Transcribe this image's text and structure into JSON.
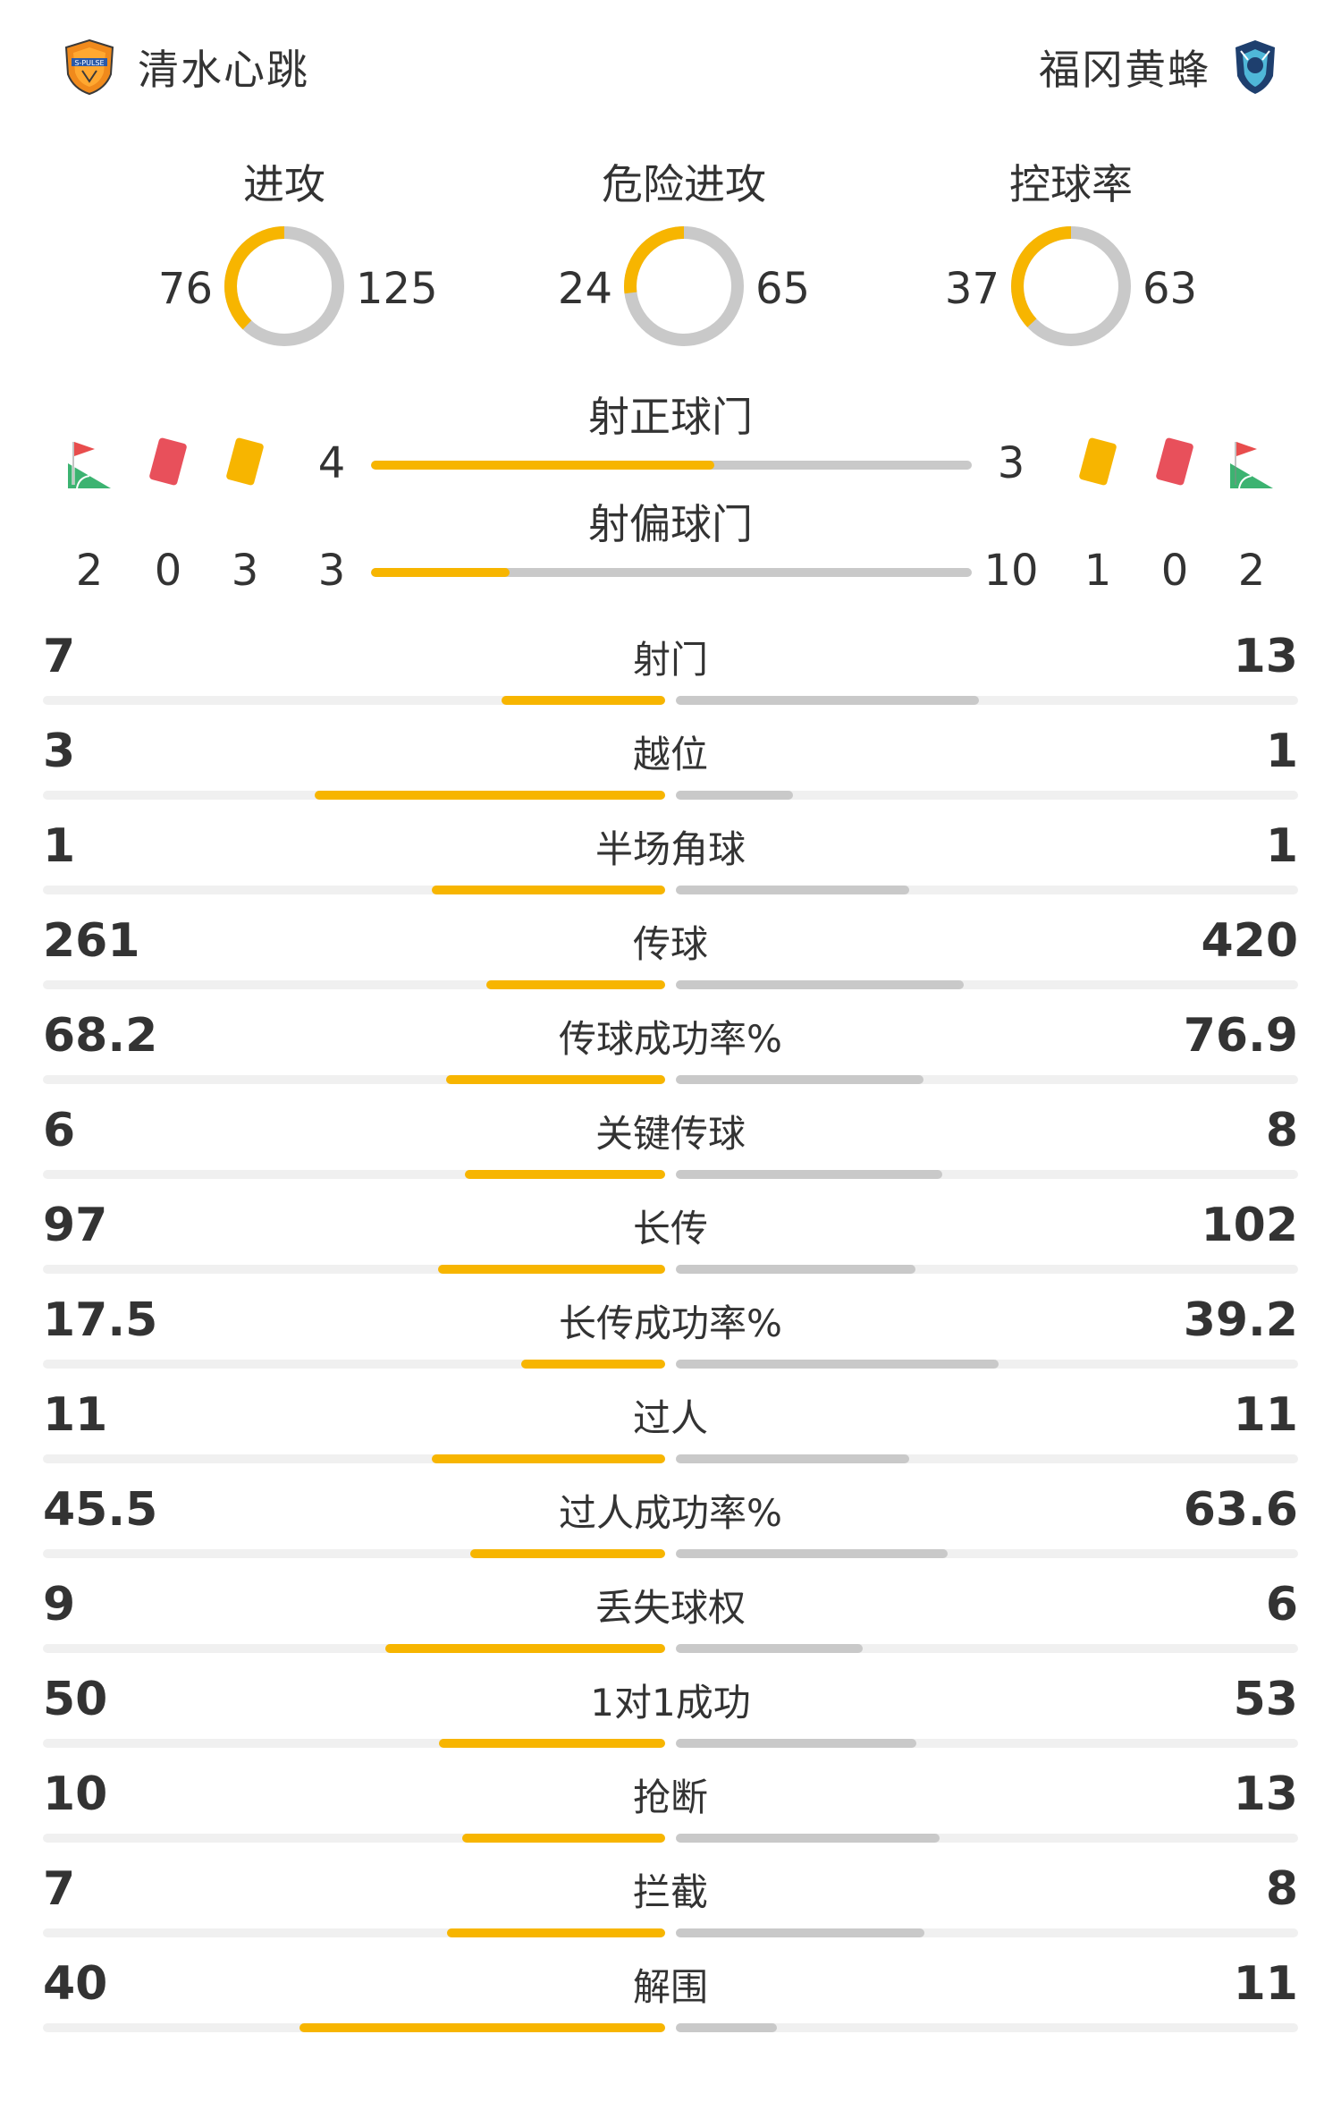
{
  "header": {
    "home_team": "清水心跳",
    "away_team": "福冈黄蜂",
    "home_logo_icon": "shimizu-crest-icon",
    "away_logo_icon": "fukuoka-crest-icon"
  },
  "colors": {
    "home": "#f7b500",
    "away": "#c9c9c9",
    "track": "#f0f0f0",
    "text": "#333333"
  },
  "donuts": [
    {
      "title": "进攻",
      "home": "76",
      "away": "125",
      "home_value": 76,
      "away_value": 125
    },
    {
      "title": "危险进攻",
      "home": "24",
      "away": "65",
      "home_value": 24,
      "away_value": 65
    },
    {
      "title": "控球率",
      "home": "37",
      "away": "63",
      "home_value": 37,
      "away_value": 63
    }
  ],
  "shots": {
    "on_target": {
      "title": "射正球门",
      "home": "4",
      "away": "3",
      "home_value": 4,
      "away_value": 3
    },
    "off_target": {
      "title": "射偏球门",
      "home": "3",
      "away": "10",
      "home_value": 3,
      "away_value": 10
    }
  },
  "cards": {
    "home": {
      "corners": "2",
      "red": "0",
      "yellow": "3"
    },
    "away": {
      "yellow": "1",
      "red": "0",
      "corners": "2"
    },
    "icons": [
      "corner-flag-icon",
      "red-card-icon",
      "yellow-card-icon"
    ]
  },
  "stats": [
    {
      "label": "射门",
      "home": "7",
      "away": "13",
      "home_value": 7,
      "away_value": 13
    },
    {
      "label": "越位",
      "home": "3",
      "away": "1",
      "home_value": 3,
      "away_value": 1
    },
    {
      "label": "半场角球",
      "home": "1",
      "away": "1",
      "home_value": 1,
      "away_value": 1
    },
    {
      "label": "传球",
      "home": "261",
      "away": "420",
      "home_value": 261,
      "away_value": 420
    },
    {
      "label": "传球成功率%",
      "home": "68.2",
      "away": "76.9",
      "home_value": 68.2,
      "away_value": 76.9
    },
    {
      "label": "关键传球",
      "home": "6",
      "away": "8",
      "home_value": 6,
      "away_value": 8
    },
    {
      "label": "长传",
      "home": "97",
      "away": "102",
      "home_value": 97,
      "away_value": 102
    },
    {
      "label": "长传成功率%",
      "home": "17.5",
      "away": "39.2",
      "home_value": 17.5,
      "away_value": 39.2
    },
    {
      "label": "过人",
      "home": "11",
      "away": "11",
      "home_value": 11,
      "away_value": 11
    },
    {
      "label": "过人成功率%",
      "home": "45.5",
      "away": "63.6",
      "home_value": 45.5,
      "away_value": 63.6
    },
    {
      "label": "丢失球权",
      "home": "9",
      "away": "6",
      "home_value": 9,
      "away_value": 6
    },
    {
      "label": "1对1成功",
      "home": "50",
      "away": "53",
      "home_value": 50,
      "away_value": 53
    },
    {
      "label": "抢断",
      "home": "10",
      "away": "13",
      "home_value": 10,
      "away_value": 13
    },
    {
      "label": "拦截",
      "home": "7",
      "away": "8",
      "home_value": 7,
      "away_value": 8
    },
    {
      "label": "解围",
      "home": "40",
      "away": "11",
      "home_value": 40,
      "away_value": 11
    }
  ]
}
